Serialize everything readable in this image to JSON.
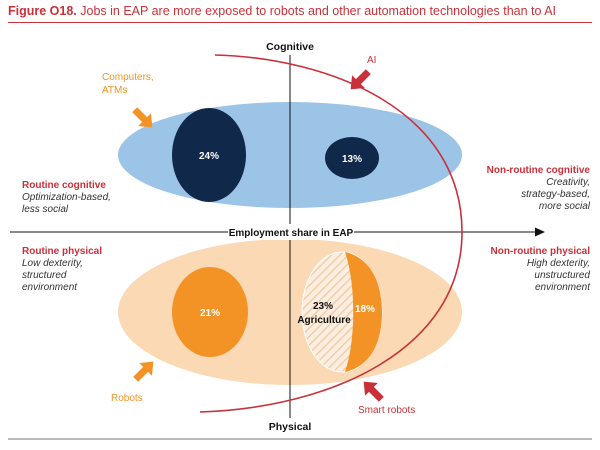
{
  "figure": {
    "label": "Figure O18.",
    "caption": "Jobs in EAP are more exposed to robots and other automation technologies than to AI"
  },
  "axes": {
    "top": "Cognitive",
    "bottom": "Physical",
    "horizontal": "Employment share in EAP"
  },
  "quadrants": {
    "routine_cognitive": {
      "heading": "Routine cognitive",
      "desc_lines": [
        "Optimization-based,",
        "less social"
      ]
    },
    "nonroutine_cognitive": {
      "heading": "Non-routine cognitive",
      "desc_lines": [
        "Creativity,",
        "strategy-based,",
        "more social"
      ]
    },
    "routine_physical": {
      "heading": "Routine physical",
      "desc_lines": [
        "Low dexterity,",
        "structured",
        "environment"
      ]
    },
    "nonroutine_physical": {
      "heading": "Non-routine physical",
      "desc_lines": [
        "High dexterity,",
        "unstructured",
        "environment"
      ]
    }
  },
  "technologies": {
    "computers": {
      "lines": [
        "Computers,",
        "ATMs"
      ]
    },
    "ai": {
      "label": "AI"
    },
    "robots": {
      "label": "Robots"
    },
    "smart_robots": {
      "label": "Smart robots"
    }
  },
  "shares": {
    "routine_cognitive": "24%",
    "nonroutine_cognitive": "13%",
    "routine_physical": "21%",
    "agriculture_pct": "23%",
    "agriculture_label": "Agriculture",
    "nonroutine_physical": "18%"
  },
  "colors": {
    "cognitive_fill": "#9cc4e6",
    "physical_fill": "#fad9b4",
    "dark_navy": "#10284a",
    "orange": "#f39325",
    "red": "#c8313a",
    "hatch": "#f5d6b4"
  }
}
